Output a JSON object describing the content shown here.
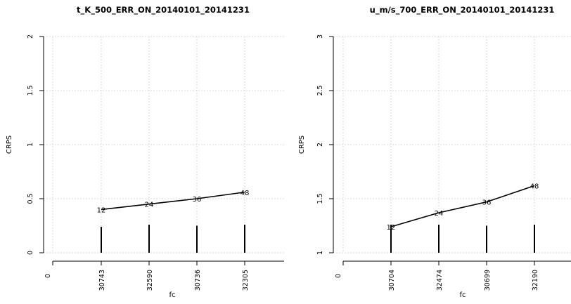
{
  "chart_data": [
    {
      "type": "line",
      "title": "t_K_500_ERR_ON_20140101_20141231",
      "xlabel": "fc",
      "ylabel": "CRPS",
      "ylim": [
        0,
        2
      ],
      "yticks": [
        "0",
        "0.5",
        "1",
        "1.5",
        "2"
      ],
      "x_zero_label": "0",
      "categories": [
        "30743",
        "32590",
        "30736",
        "32305"
      ],
      "point_labels": [
        "12",
        "24",
        "36",
        "48"
      ],
      "series": [
        {
          "values": [
            0.4,
            0.45,
            0.5,
            0.56
          ]
        }
      ],
      "bar_values": [
        0.24,
        0.26,
        0.25,
        0.26
      ],
      "grid": true
    },
    {
      "type": "line",
      "title": "u_m/s_700_ERR_ON_20140101_20141231",
      "xlabel": "fc",
      "ylabel": "CRPS",
      "ylim": [
        1,
        3
      ],
      "yticks": [
        "1",
        "1.5",
        "2",
        "2.5",
        "3"
      ],
      "x_zero_label": "0",
      "categories": [
        "30704",
        "32474",
        "30699",
        "32190"
      ],
      "point_labels": [
        "12",
        "24",
        "36",
        "48"
      ],
      "series": [
        {
          "values": [
            1.24,
            1.37,
            1.47,
            1.62
          ]
        }
      ],
      "bar_values": [
        1.26,
        1.26,
        1.25,
        1.26
      ],
      "grid": true
    }
  ]
}
